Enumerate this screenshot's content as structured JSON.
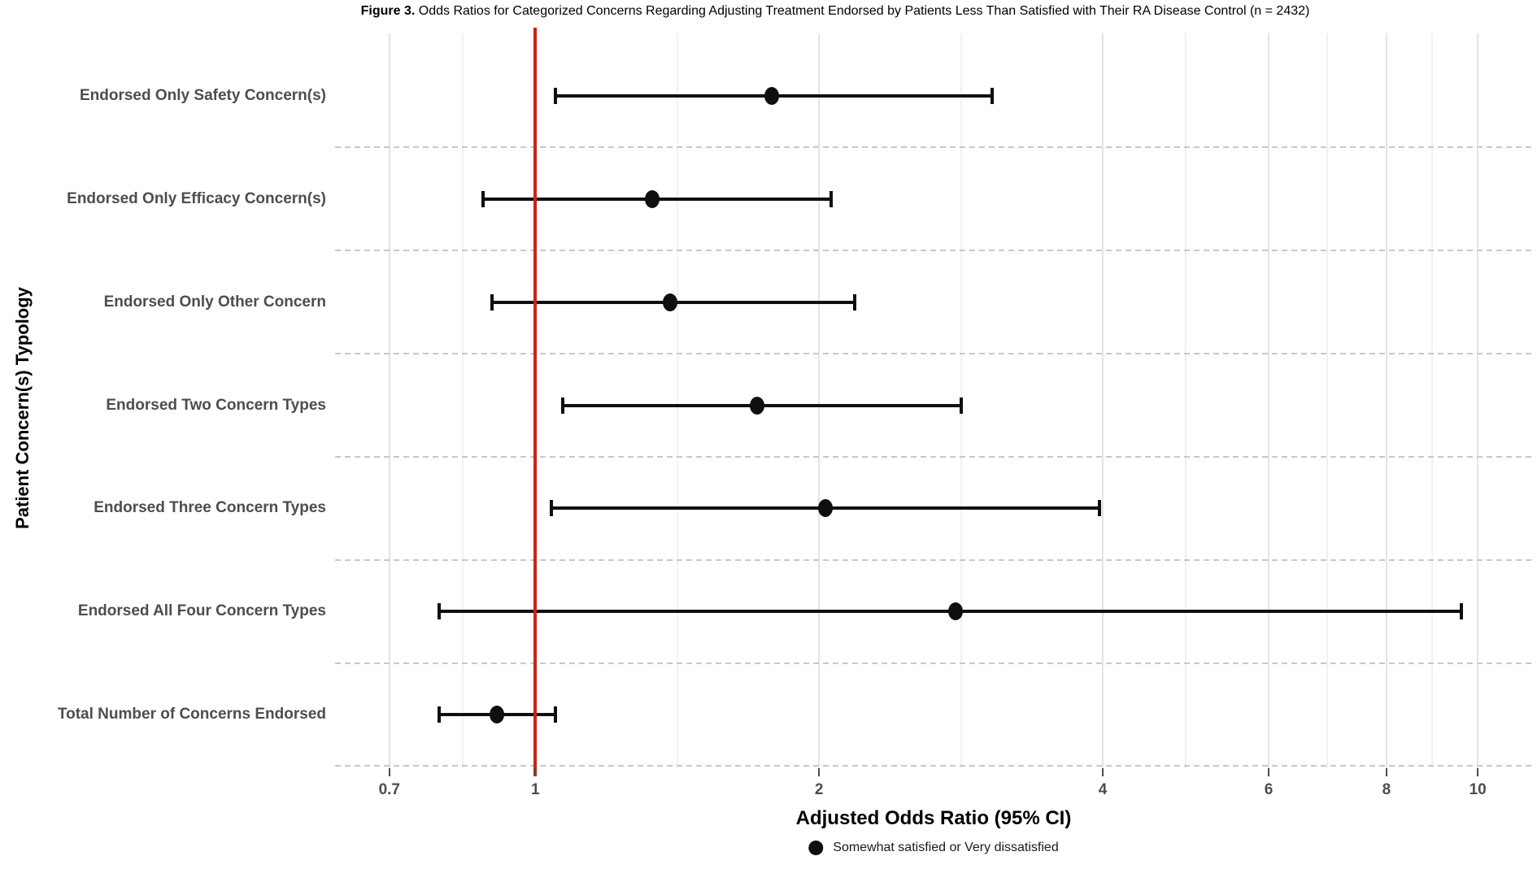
{
  "figure": {
    "title_prefix": "Figure 3.",
    "title_rest": " Odds Ratios for Categorized Concerns Regarding Adjusting Treatment Endorsed by Patients Less Than Satisfied with Their RA Disease Control (n = 2432)"
  },
  "chart_data": {
    "type": "scatter",
    "subtype": "forest-plot-dot-with-95ci",
    "xlabel": "Adjusted Odds Ratio (95% CI)",
    "ylabel": "Patient Concern(s) Typology",
    "x_scale": "log10",
    "x_tick_labels": [
      "0.7",
      "1",
      "2",
      "4",
      "6",
      "8",
      "10"
    ],
    "x_tick_values": [
      0.7,
      1,
      2,
      4,
      6,
      8,
      10
    ],
    "x_minor_values": [
      0.837,
      1.414,
      2.828,
      4.899,
      6.928,
      8.944
    ],
    "x_range": [
      0.613,
      11.42
    ],
    "reference_line_x": 1,
    "grid": "major+minor vertical, dashed horizontal row separators",
    "legend_position": "bottom",
    "legend": {
      "marker": "filled-black-circle",
      "label": "Somewhat satisfied or Very dissatisfied"
    },
    "rows": [
      {
        "label": "Endorsed Only Safety Concern(s)",
        "or": 1.78,
        "ci_low": 1.05,
        "ci_high": 3.05
      },
      {
        "label": "Endorsed Only Efficacy Concern(s)",
        "or": 1.33,
        "ci_low": 0.88,
        "ci_high": 2.06
      },
      {
        "label": "Endorsed Only Other Concern",
        "or": 1.39,
        "ci_low": 0.9,
        "ci_high": 2.18
      },
      {
        "label": "Endorsed Two Concern Types",
        "or": 1.72,
        "ci_low": 1.07,
        "ci_high": 2.83
      },
      {
        "label": "Endorsed Three Concern Types",
        "or": 2.03,
        "ci_low": 1.04,
        "ci_high": 3.97
      },
      {
        "label": "Endorsed All Four Concern Types",
        "or": 2.79,
        "ci_low": 0.79,
        "ci_high": 9.61
      },
      {
        "label": "Total Number of Concerns Endorsed",
        "or": 0.91,
        "ci_low": 0.79,
        "ci_high": 1.05
      }
    ],
    "colors": {
      "reference_line": "#C3261B",
      "marks": "#0f0f0f",
      "axis_text": "#4d4d4d",
      "grid_major": "#e4e4e4",
      "grid_minor": "#f1f1f1",
      "separator": "#c8c8c8"
    }
  }
}
